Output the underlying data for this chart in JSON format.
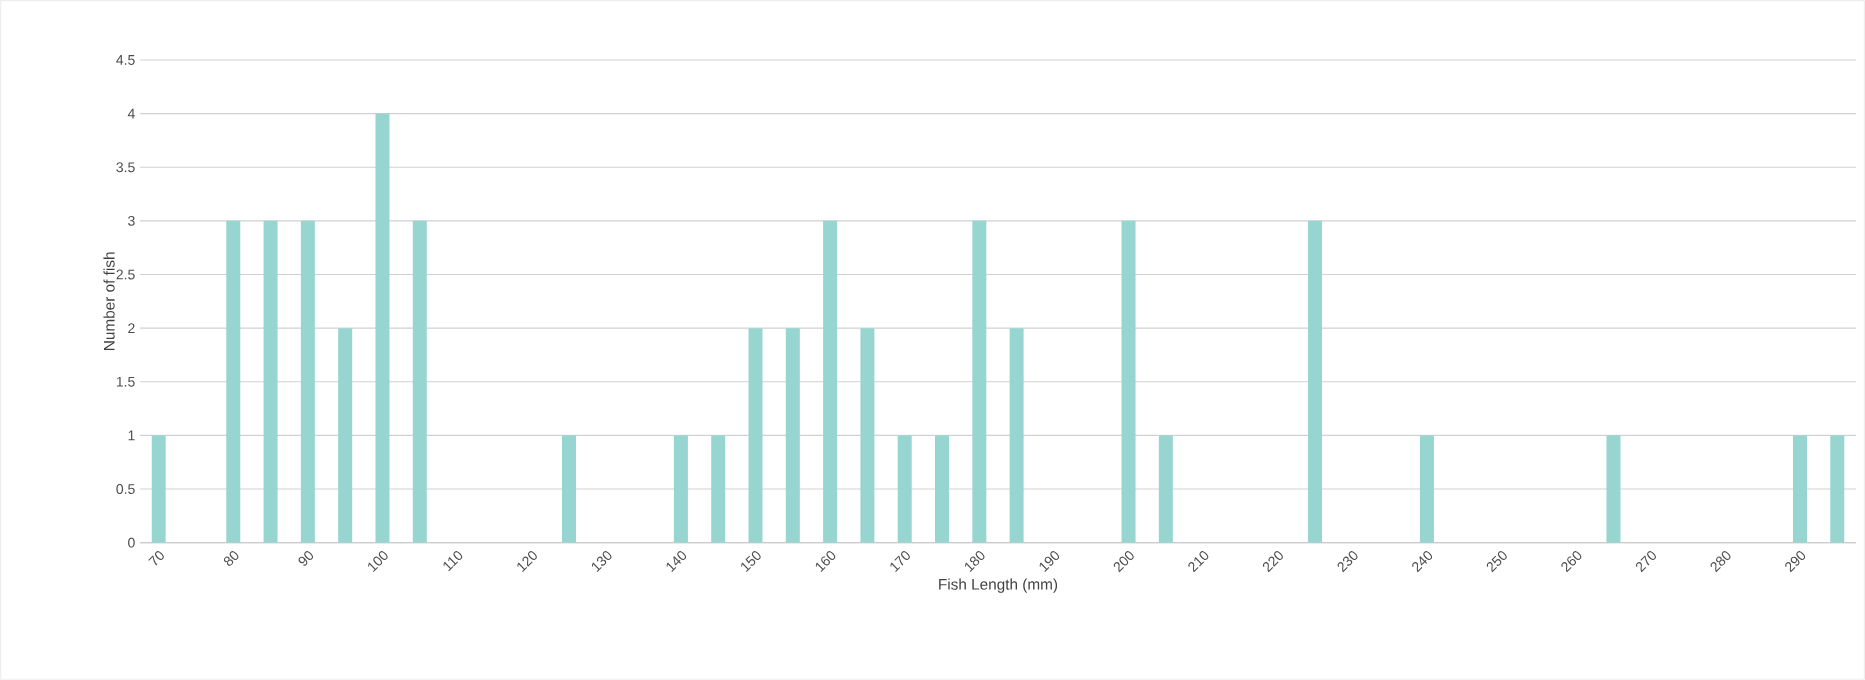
{
  "chart_data": {
    "type": "bar",
    "xlabel": "Fish Length (mm)",
    "ylabel": "Number of fish",
    "categories": [
      "70",
      null,
      "80",
      null,
      "90",
      null,
      "100",
      null,
      "110",
      null,
      "120",
      null,
      "130",
      null,
      "140",
      null,
      "150",
      null,
      "160",
      null,
      "170",
      null,
      "180",
      null,
      "190",
      null,
      "200",
      null,
      "210",
      null,
      "220",
      null,
      "230",
      null,
      "240",
      null,
      "250",
      null,
      "260",
      null,
      "270",
      null,
      "280",
      null,
      "290",
      null
    ],
    "values": [
      1,
      0,
      3,
      3,
      3,
      2,
      4,
      3,
      0,
      0,
      0,
      1,
      0,
      0,
      1,
      1,
      2,
      2,
      3,
      2,
      1,
      1,
      3,
      2,
      0,
      0,
      3,
      1,
      0,
      0,
      0,
      3,
      0,
      0,
      1,
      0,
      0,
      0,
      0,
      1,
      0,
      0,
      0,
      0,
      1,
      1
    ],
    "color": "#96d5d0",
    "ylim": [
      0,
      4.5
    ],
    "yticks": [
      0,
      0.5,
      1,
      1.5,
      2,
      2.5,
      3,
      3.5,
      4,
      4.5
    ],
    "grid": "y"
  }
}
